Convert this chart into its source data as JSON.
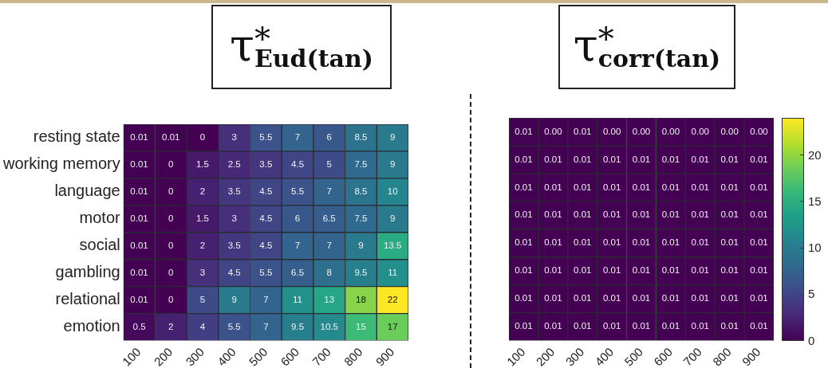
{
  "chart_data": [
    {
      "type": "heatmap",
      "title": "τ$^{*}$$_{Eud(tan)}$",
      "data_labels": true,
      "categories": [
        "100",
        "200",
        "300",
        "400",
        "500",
        "600",
        "700",
        "800",
        "900"
      ],
      "y_categories": [
        "resting state",
        "working memory",
        "language",
        "motor",
        "social",
        "gambling",
        "relational",
        "emotion"
      ],
      "cells": [
        [
          0.01,
          0.01,
          0,
          3,
          5.5,
          7,
          6,
          8.5,
          9
        ],
        [
          0.01,
          0,
          1.5,
          2.5,
          3.5,
          4.5,
          5,
          7.5,
          9
        ],
        [
          0.01,
          0,
          2,
          3.5,
          4.5,
          5.5,
          7,
          8.5,
          10
        ],
        [
          0.01,
          0,
          1.5,
          3,
          4.5,
          6,
          6.5,
          7.5,
          9
        ],
        [
          0.01,
          0,
          2,
          3.5,
          4.5,
          7,
          7,
          9,
          13.5
        ],
        [
          0.01,
          0,
          3,
          4.5,
          5.5,
          6.5,
          8,
          9.5,
          11
        ],
        [
          0.01,
          0,
          5,
          9,
          7,
          11,
          13,
          18,
          22
        ],
        [
          0.5,
          2,
          4,
          5.5,
          7,
          9.5,
          10.5,
          15,
          17
        ]
      ]
    },
    {
      "type": "heatmap",
      "title": "τ$^{*}$$_{corr(tan)}$",
      "tick_labels": "x",
      "categories": [
        "100",
        "200",
        "300",
        "400",
        "500",
        "600",
        "700",
        "800",
        "900"
      ],
      "y_categories": [
        null,
        null,
        null,
        null,
        null,
        null,
        null,
        null
      ],
      "cells": [
        [
          0.01,
          0,
          0.01,
          0,
          0,
          0,
          0,
          0,
          0
        ],
        [
          0.01,
          0.01,
          0.01,
          0.01,
          0.01,
          0.01,
          0.01,
          0.01,
          0.01
        ],
        [
          0.01,
          0.01,
          0.01,
          0.01,
          0.01,
          0.01,
          0.01,
          0.01,
          0.01
        ],
        [
          0.01,
          0.01,
          0.01,
          0.01,
          0.01,
          0.01,
          0.01,
          0.01,
          0.01
        ],
        [
          0.01,
          0.01,
          0.01,
          0.01,
          0.01,
          0.01,
          0.01,
          0.01,
          0.01
        ],
        [
          0.01,
          0.01,
          0.01,
          0.01,
          0.01,
          0.01,
          0.01,
          0.01,
          0.01
        ],
        [
          0.01,
          0.01,
          0.01,
          0.01,
          0.01,
          0.01,
          0.01,
          0.01,
          0.01
        ],
        [
          0.01,
          0.01,
          0.01,
          0.01,
          0.01,
          0.01,
          0.01,
          0.01,
          0.01
        ]
      ],
      "cell_labels": [
        [
          "0.01",
          "0.00",
          "0.01",
          "0.00",
          "0.00",
          "0.00",
          "0.00",
          "0.00",
          "0.00"
        ],
        [
          "0.01",
          "0.01",
          "0.01",
          "0.01",
          "0.01",
          "0.01",
          "0.01",
          "0.01",
          "0.01"
        ],
        [
          "0.01",
          "0.01",
          "0.01",
          "0.01",
          "0.01",
          "0.01",
          "0.01",
          "0.01",
          "0.01"
        ],
        [
          "0.01",
          "0.01",
          "0.01",
          "0.01",
          "0.01",
          "0.01",
          "0.01",
          "0.01",
          "0.01"
        ],
        [
          "0.01",
          "0.01",
          "0.01",
          "0.01",
          "0.01",
          "0.01",
          "0.01",
          "0.01",
          "0.01"
        ],
        [
          "0.01",
          "0.01",
          "0.01",
          "0.01",
          "0.01",
          "0.01",
          "0.01",
          "0.01",
          "0.01"
        ],
        [
          "0.01",
          "0.01",
          "0.01",
          "0.01",
          "0.01",
          "0.01",
          "0.01",
          "0.01",
          "0.01"
        ],
        [
          "0.01",
          "0.01",
          "0.01",
          "0.01",
          "0.01",
          "0.01",
          "0.01",
          "0.01",
          "0.01"
        ]
      ],
      "clim": [
        0,
        24
      ],
      "cticks": [
        0,
        5,
        10,
        15,
        20
      ]
    }
  ]
}
